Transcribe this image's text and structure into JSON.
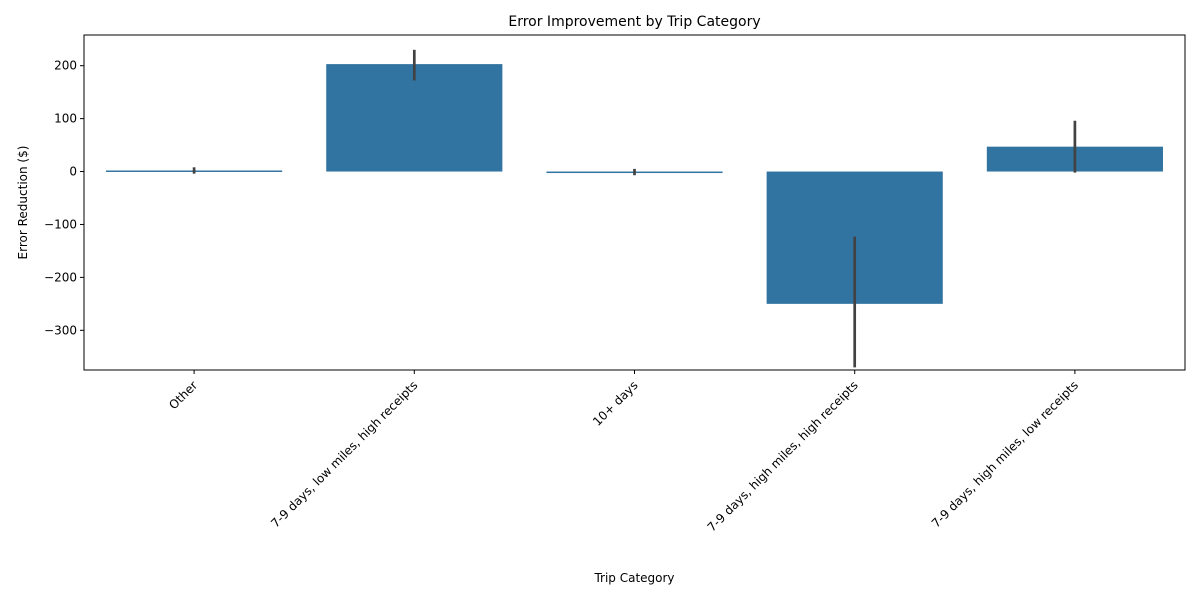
{
  "chart_data": {
    "type": "bar",
    "title": "Error Improvement by Trip Category",
    "xlabel": "Trip Category",
    "ylabel": "Error Reduction ($)",
    "categories": [
      "Other",
      "7-9 days, low miles, high receipts",
      "10+ days",
      "7-9 days, high miles, high receipts",
      "7-9 days, high miles, low receipts"
    ],
    "values": [
      2,
      203,
      0,
      -250,
      47
    ],
    "error_low": [
      -4,
      172,
      -7,
      -370,
      -2
    ],
    "error_high": [
      8,
      230,
      5,
      -123,
      96
    ],
    "ylim": [
      -375,
      258
    ],
    "yticks": [
      -300,
      -200,
      -100,
      0,
      100,
      200
    ],
    "grid": false,
    "legend": "none",
    "bar_color": "#3274a1",
    "error_color": "#424242"
  }
}
